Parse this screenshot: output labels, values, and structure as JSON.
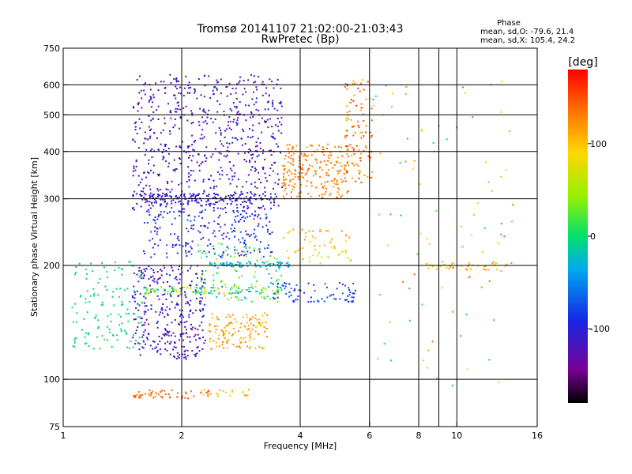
{
  "chart_data": {
    "type": "scatter",
    "title": "Tromsø 20141107 21:02:00-21:03:43",
    "subtitle": "RwPretec (Bp)",
    "xlabel": "Frequency [MHz]",
    "ylabel": "Stationary phase Virtual Height [km]",
    "x_scale": "log",
    "y_scale": "log",
    "xlim": [
      1,
      16
    ],
    "ylim": [
      75,
      750
    ],
    "x_ticks": [
      1,
      2,
      4,
      6,
      8,
      10,
      16
    ],
    "x_minor_ticks": [
      9
    ],
    "y_ticks": [
      75,
      100,
      200,
      300,
      400,
      500,
      600,
      750
    ],
    "grid": true,
    "colorbar": {
      "label": "[deg]",
      "range": [
        -180,
        180
      ],
      "ticks": [
        100,
        0,
        -100
      ],
      "colormap": "rainbow"
    },
    "phase_stats": {
      "header": "Phase",
      "line_o": "mean, sd,O: -79.6, 21.4",
      "line_x": "mean, sd,X: 105.4, 24.2"
    },
    "series": [
      {
        "x_range": [
          1.5,
          3.6
        ],
        "y_range": [
          280,
          640
        ],
        "phase_mean": -115,
        "phase_spread": 25,
        "count": 650,
        "shape": "region"
      },
      {
        "x_range": [
          1.6,
          3.4
        ],
        "y_range": [
          210,
          280
        ],
        "phase_mean": -95,
        "phase_spread": 30,
        "count": 220,
        "shape": "region"
      },
      {
        "x_range": [
          1.5,
          2.3
        ],
        "y_range": [
          113,
          200
        ],
        "phase_mean": -115,
        "phase_spread": 25,
        "count": 320,
        "shape": "region"
      },
      {
        "x_range": [
          1.05,
          1.6
        ],
        "y_range": [
          120,
          205
        ],
        "phase_mean": -5,
        "phase_spread": 15,
        "count": 130,
        "shape": "region"
      },
      {
        "x_range": [
          2.35,
          3.3
        ],
        "y_range": [
          120,
          150
        ],
        "phase_mean": 115,
        "phase_spread": 20,
        "count": 130,
        "shape": "region"
      },
      {
        "x_range": [
          2.2,
          3.6
        ],
        "y_range": [
          160,
          230
        ],
        "phase_mean": 10,
        "phase_spread": 50,
        "count": 120,
        "shape": "region"
      },
      {
        "x_range": [
          3.6,
          5.3
        ],
        "y_range": [
          300,
          420
        ],
        "phase_mean": 130,
        "phase_spread": 15,
        "count": 220,
        "shape": "region"
      },
      {
        "x_range": [
          5.2,
          6.1
        ],
        "y_range": [
          330,
          620
        ],
        "phase_mean": 135,
        "phase_spread": 30,
        "count": 110,
        "shape": "region"
      },
      {
        "x_range": [
          3.6,
          5.4
        ],
        "y_range": [
          200,
          250
        ],
        "phase_mean": 95,
        "phase_spread": 30,
        "count": 60,
        "shape": "region"
      },
      {
        "x_range": [
          3.4,
          5.6
        ],
        "y_range": [
          160,
          180
        ],
        "phase_mean": -80,
        "phase_spread": 25,
        "count": 80,
        "shape": "region"
      },
      {
        "x_range": [
          6.0,
          14.0
        ],
        "y_range": [
          95,
          650
        ],
        "phase_mean": 60,
        "phase_spread": 90,
        "count": 90,
        "shape": "region"
      },
      {
        "x_range": [
          8.0,
          13.5
        ],
        "y_range": [
          194,
          204
        ],
        "phase_mean": 110,
        "phase_spread": 20,
        "count": 40,
        "shape": "region"
      },
      {
        "x_range": [
          1.5,
          2.4
        ],
        "y_range": [
          89,
          94
        ],
        "phase_mean": 145,
        "phase_spread": 15,
        "count": 50,
        "shape": "region"
      },
      {
        "x_range": [
          2.2,
          3.0
        ],
        "y_range": [
          90,
          94
        ],
        "phase_mean": 90,
        "phase_spread": 40,
        "count": 20,
        "shape": "region"
      },
      {
        "x_range": [
          1.6,
          3.6
        ],
        "y_range": [
          168,
          176
        ],
        "phase_mean": 20,
        "phase_spread": 80,
        "count": 120,
        "shape": "band"
      },
      {
        "x_range": [
          1.5,
          3.5
        ],
        "y_range": [
          290,
          310
        ],
        "phase_mean": -105,
        "phase_spread": 15,
        "count": 160,
        "shape": "band"
      },
      {
        "x_range": [
          2.3,
          3.8
        ],
        "y_range": [
          198,
          204
        ],
        "phase_mean": -35,
        "phase_spread": 20,
        "count": 60,
        "shape": "band"
      }
    ]
  }
}
